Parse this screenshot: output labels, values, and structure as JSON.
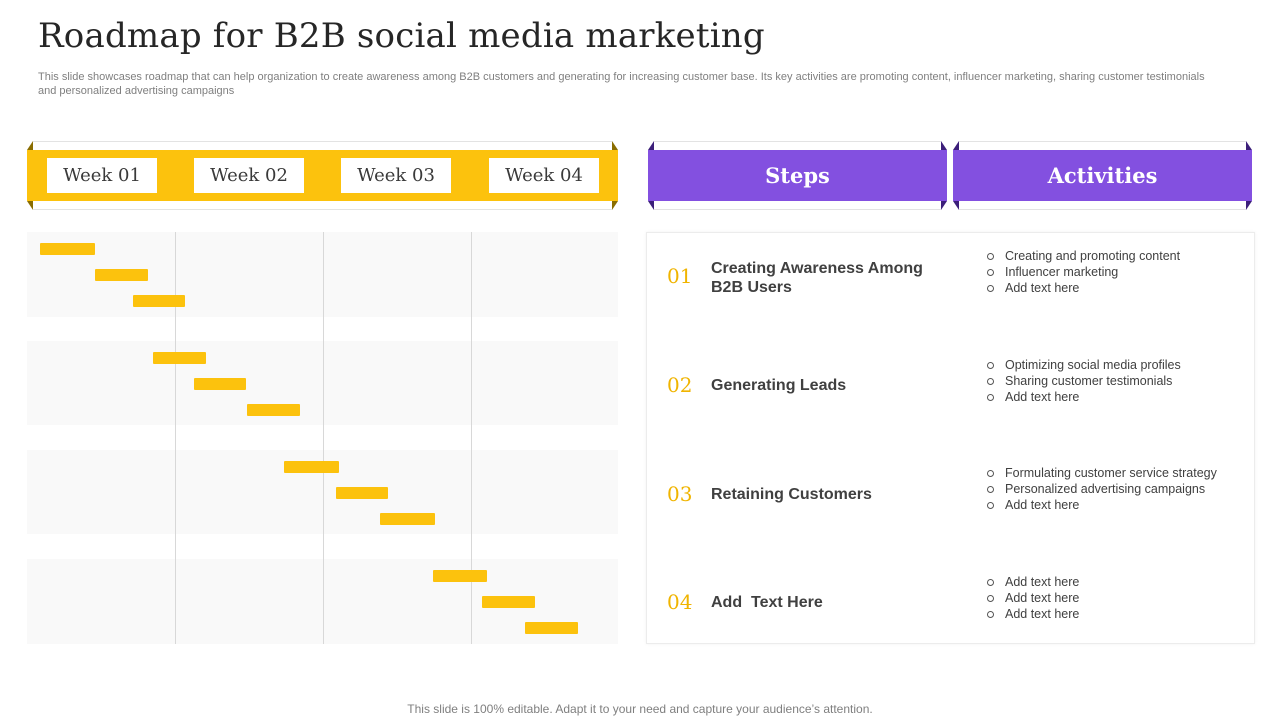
{
  "title": "Roadmap for B2B social media marketing",
  "subtitle": "This slide showcases roadmap that can help organization to create awareness among B2B customers and generating for increasing customer base. Its key activities are promoting content, influencer marketing, sharing customer testimonials and personalized advertising campaigns",
  "weeks": [
    "Week 01",
    "Week 02",
    "Week 03",
    "Week 04"
  ],
  "headers": {
    "steps": "Steps",
    "activities": "Activities"
  },
  "steps": [
    {
      "num": "01",
      "title": "Creating Awareness Among B2B Users",
      "activities": [
        "Creating and promoting content",
        "Influencer marketing",
        "Add text here"
      ]
    },
    {
      "num": "02",
      "title": "Generating Leads",
      "activities": [
        "Optimizing social media profiles",
        "Sharing customer testimonials",
        "Add text here"
      ]
    },
    {
      "num": "03",
      "title": "Retaining Customers",
      "activities": [
        "Formulating customer service strategy",
        "Personalized advertising campaigns",
        "Add text here"
      ]
    },
    {
      "num": "04",
      "title": "Add  Text Here",
      "activities": [
        "Add text here",
        "Add text here",
        "Add text here"
      ]
    }
  ],
  "timeline": {
    "unit": "week",
    "range": [
      0,
      4
    ],
    "tasks": [
      {
        "step": 1,
        "start": 0.09,
        "end": 0.46
      },
      {
        "step": 1,
        "start": 0.46,
        "end": 0.82
      },
      {
        "step": 1,
        "start": 0.72,
        "end": 1.07
      },
      {
        "step": 2,
        "start": 0.85,
        "end": 1.21
      },
      {
        "step": 2,
        "start": 1.13,
        "end": 1.48
      },
      {
        "step": 2,
        "start": 1.49,
        "end": 1.85
      },
      {
        "step": 3,
        "start": 1.74,
        "end": 2.11
      },
      {
        "step": 3,
        "start": 2.09,
        "end": 2.44
      },
      {
        "step": 3,
        "start": 2.39,
        "end": 2.76
      },
      {
        "step": 4,
        "start": 2.75,
        "end": 3.11
      },
      {
        "step": 4,
        "start": 3.08,
        "end": 3.44
      },
      {
        "step": 4,
        "start": 3.37,
        "end": 3.73
      }
    ]
  },
  "colors": {
    "accent_yellow": "#fcc20d",
    "accent_purple": "#8350e0",
    "number_gold": "#f0b400"
  },
  "footer": "This slide is 100% editable. Adapt it to your need and capture your audience’s attention."
}
